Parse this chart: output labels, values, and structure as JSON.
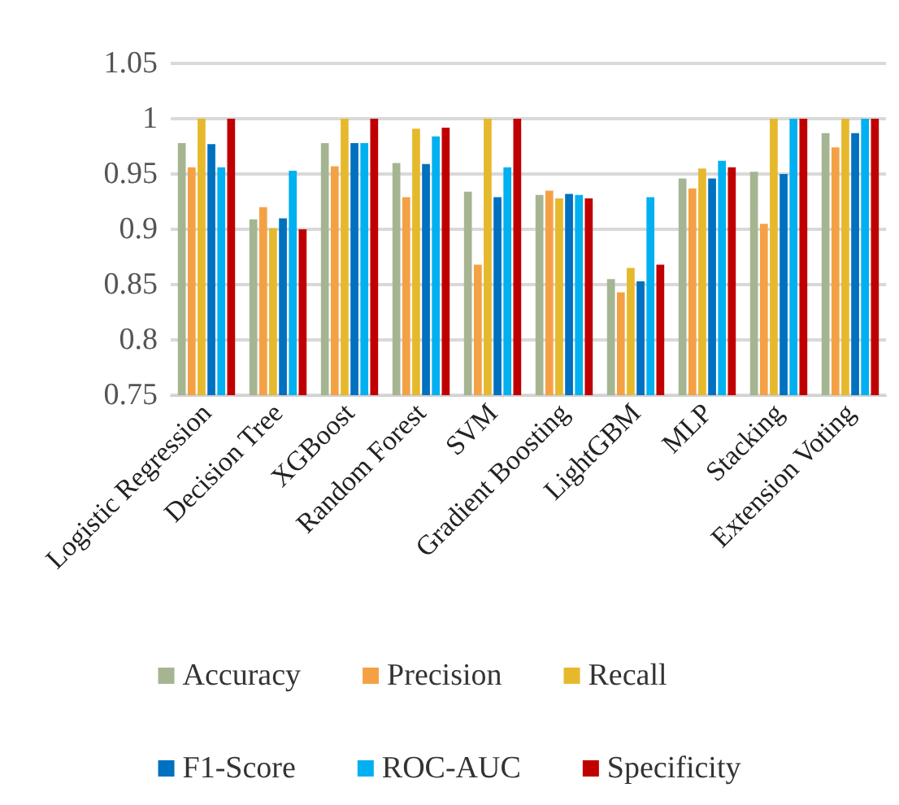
{
  "chart_data": {
    "type": "bar",
    "categories": [
      "Logistic Regression",
      "Decision Tree",
      "XGBoost",
      "Random Forest",
      "SVM",
      "Gradient Boosting",
      "LightGBM",
      "MLP",
      "Stacking",
      "Extension Voting"
    ],
    "series": [
      {
        "name": "Accuracy",
        "color": "#a5b592",
        "values": [
          0.978,
          0.909,
          0.978,
          0.96,
          0.934,
          0.931,
          0.855,
          0.946,
          0.952,
          0.987
        ]
      },
      {
        "name": "Precision",
        "color": "#f4a145",
        "values": [
          0.956,
          0.92,
          0.957,
          0.929,
          0.868,
          0.935,
          0.843,
          0.937,
          0.905,
          0.974
        ]
      },
      {
        "name": "Recall",
        "color": "#e6b92d",
        "values": [
          1.0,
          0.901,
          1.0,
          0.991,
          1.0,
          0.928,
          0.865,
          0.955,
          1.0,
          1.0
        ]
      },
      {
        "name": "F1-Score",
        "color": "#0070c0",
        "values": [
          0.977,
          0.91,
          0.978,
          0.959,
          0.929,
          0.932,
          0.853,
          0.946,
          0.95,
          0.987
        ]
      },
      {
        "name": "ROC-AUC",
        "color": "#00b0f0",
        "values": [
          0.956,
          0.953,
          0.978,
          0.984,
          0.956,
          0.931,
          0.929,
          0.962,
          1.0,
          1.0
        ]
      },
      {
        "name": "Specificity",
        "color": "#c00000",
        "values": [
          1.0,
          0.9,
          1.0,
          0.992,
          1.0,
          0.928,
          0.868,
          0.956,
          1.0,
          1.0
        ]
      }
    ],
    "ylim": [
      0.75,
      1.05
    ],
    "yticks": [
      0.75,
      0.8,
      0.85,
      0.9,
      0.95,
      1,
      1.05
    ],
    "grid": "y",
    "legend": "bottom"
  }
}
